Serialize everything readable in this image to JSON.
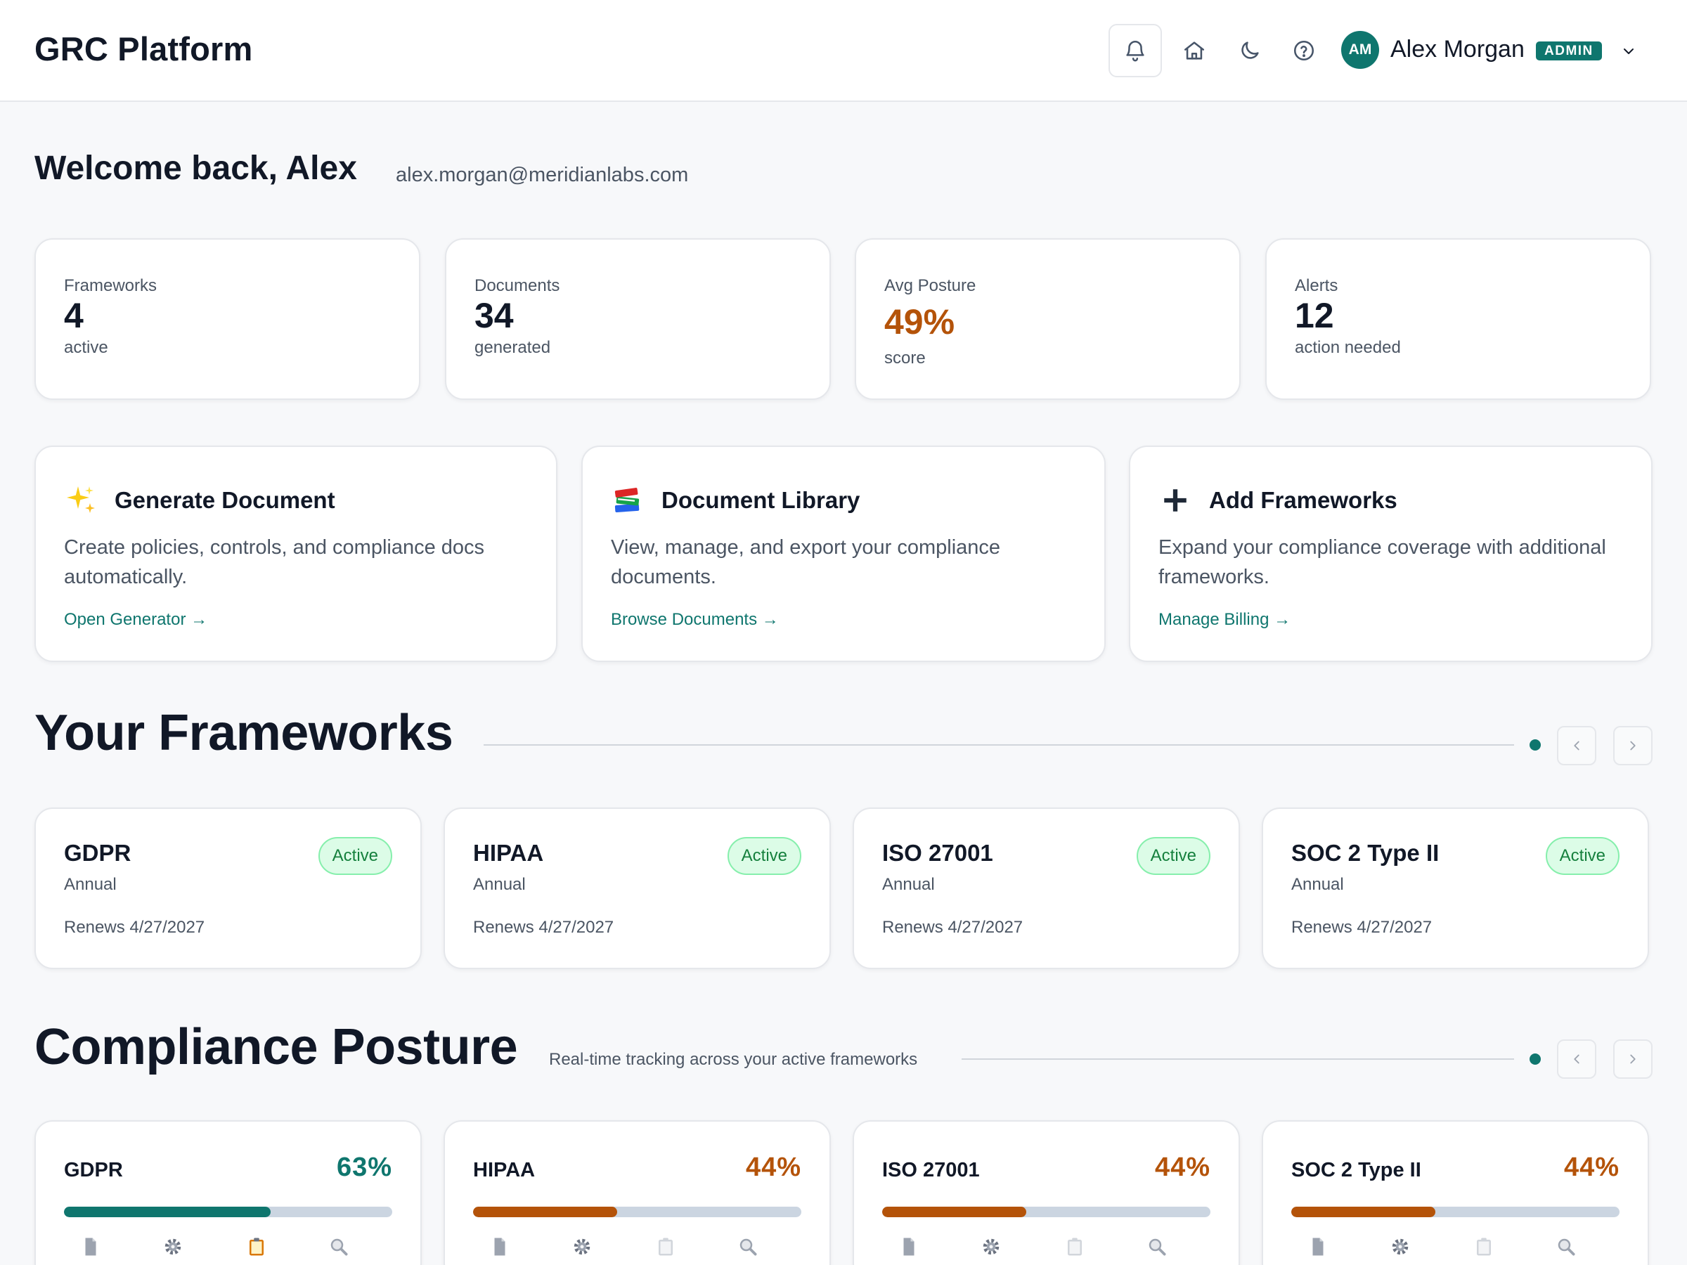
{
  "app": {
    "title": "GRC Platform"
  },
  "header": {
    "icons": [
      "bell-icon",
      "home-icon",
      "moon-icon",
      "help-icon",
      "chevron-down-icon"
    ],
    "user": {
      "initials": "AM",
      "name": "Alex Morgan",
      "role": "ADMIN"
    }
  },
  "welcome": {
    "greeting": "Welcome back, Alex",
    "email": "alex.morgan@meridianlabs.com"
  },
  "stats": [
    {
      "label": "Frameworks",
      "value": "4",
      "sub": "active"
    },
    {
      "label": "Documents",
      "value": "34",
      "sub": "generated"
    },
    {
      "label": "Avg Posture",
      "value": "49%",
      "sub": "score"
    },
    {
      "label": "Alerts",
      "value": "12",
      "sub": "action needed"
    }
  ],
  "actions": [
    {
      "icon": "sparkles-icon",
      "title": "Generate Document",
      "description": "Create policies, controls, and compliance docs automatically.",
      "link": "Open Generator →"
    },
    {
      "icon": "books-icon",
      "title": "Document Library",
      "description": "View, manage, and export your compliance documents.",
      "link": "Browse Documents →"
    },
    {
      "icon": "plus-icon",
      "title": "Add Frameworks",
      "description": "Expand your compliance coverage with additional frameworks.",
      "link": "Manage Billing →"
    }
  ],
  "frameworks_section": {
    "title": "Your Frameworks",
    "items": [
      {
        "name": "GDPR",
        "cycle": "Annual",
        "renews": "Renews 4/27/2027",
        "status": "Active"
      },
      {
        "name": "HIPAA",
        "cycle": "Annual",
        "renews": "Renews 4/27/2027",
        "status": "Active"
      },
      {
        "name": "ISO 27001",
        "cycle": "Annual",
        "renews": "Renews 4/27/2027",
        "status": "Active"
      },
      {
        "name": "SOC 2 Type II",
        "cycle": "Annual",
        "renews": "Renews 4/27/2027",
        "status": "Active"
      }
    ]
  },
  "posture_section": {
    "title": "Compliance Posture",
    "subtitle": "Real-time tracking across your active frameworks",
    "items": [
      {
        "name": "GDPR",
        "percent": "63%",
        "value": 0.63,
        "color": "#0f766e"
      },
      {
        "name": "HIPAA",
        "percent": "44%",
        "value": 0.44,
        "color": "#b45309"
      },
      {
        "name": "ISO 27001",
        "percent": "44%",
        "value": 0.44,
        "color": "#b45309"
      },
      {
        "name": "SOC 2 Type II",
        "percent": "44%",
        "value": 0.44,
        "color": "#b45309"
      }
    ],
    "icons": [
      "document-icon",
      "gear-icon",
      "clipboard-icon",
      "magnifier-icon"
    ]
  },
  "colors": {
    "accent": "#0f766e",
    "warning": "#b45309",
    "success_bg": "#dcfce7",
    "success_text": "#15803d"
  }
}
